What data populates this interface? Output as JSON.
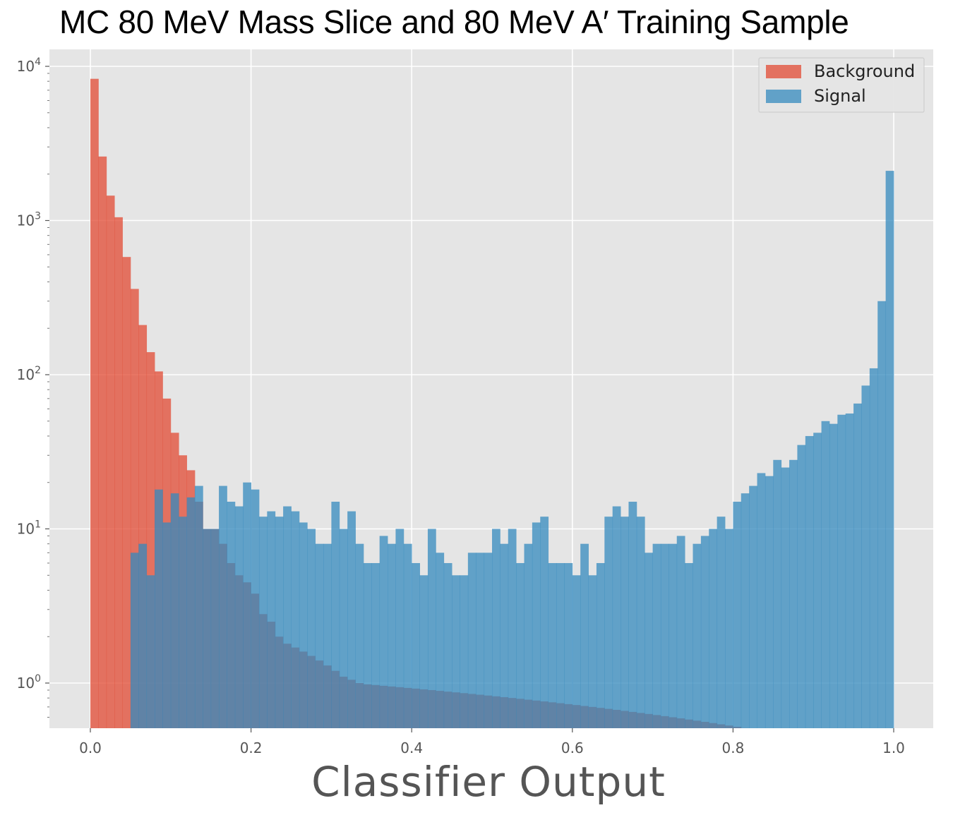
{
  "title": "MC 80 MeV Mass Slice and 80 MeV A′ Training Sample",
  "colors": {
    "background_series": "#E24A33",
    "signal_series": "#348ABD",
    "plot_bg": "#E5E5E5",
    "grid": "#FFFFFF",
    "tick_text": "#555555"
  },
  "chart_data": {
    "type": "bar",
    "xlabel": "Classifier Output",
    "ylabel": "",
    "xlim": [
      -0.05,
      1.05
    ],
    "ylim": [
      0.5,
      12000
    ],
    "yscale": "log",
    "grid": true,
    "legend_position": "top-right",
    "xticks": [
      0.0,
      0.2,
      0.4,
      0.6,
      0.8,
      1.0
    ],
    "xtick_labels": [
      "0.0",
      "0.2",
      "0.4",
      "0.6",
      "0.8",
      "1.0"
    ],
    "yticks": [
      1,
      10,
      100,
      1000,
      10000
    ],
    "ytick_labels": [
      {
        "base": "10",
        "exp": "0"
      },
      {
        "base": "10",
        "exp": "1"
      },
      {
        "base": "10",
        "exp": "2"
      },
      {
        "base": "10",
        "exp": "3"
      },
      {
        "base": "10",
        "exp": "4"
      }
    ],
    "bin_width": 0.01,
    "bin_start": 0.0,
    "series": [
      {
        "name": "Background",
        "values": [
          8300,
          2600,
          1450,
          1050,
          580,
          360,
          210,
          140,
          105,
          70,
          42,
          30,
          24,
          15,
          10,
          10,
          8,
          6,
          5,
          4.5,
          3.8,
          2.8,
          2.5,
          2.0,
          1.8,
          1.7,
          1.6,
          1.5,
          1.4,
          1.3,
          1.2,
          1.1,
          1.05,
          1.0,
          0.98,
          0.97,
          0.96,
          0.95,
          0.94,
          0.93,
          0.92,
          0.91,
          0.9,
          0.89,
          0.88,
          0.87,
          0.86,
          0.85,
          0.84,
          0.83,
          0.82,
          0.81,
          0.8,
          0.79,
          0.78,
          0.77,
          0.76,
          0.75,
          0.74,
          0.73,
          0.72,
          0.71,
          0.7,
          0.69,
          0.68,
          0.67,
          0.66,
          0.65,
          0.64,
          0.63,
          0.62,
          0.61,
          0.6,
          0.59,
          0.58,
          0.57,
          0.56,
          0.55,
          0.54,
          0.53,
          0.52,
          0.51,
          0.505,
          0.503,
          0.502,
          0.501,
          0.5,
          0.5,
          0.5,
          0.5,
          0.5,
          0.5,
          0.5,
          0.5,
          0.5,
          0.5,
          0.5,
          0.5,
          0.5,
          0.5
        ]
      },
      {
        "name": "Signal",
        "values": [
          0.5,
          0.5,
          0.5,
          0.5,
          0.5,
          7,
          8,
          5,
          18,
          11,
          17,
          12,
          16,
          19,
          10,
          10,
          19,
          15,
          14,
          20,
          18,
          12,
          13,
          12,
          14,
          13,
          11,
          10,
          8,
          8,
          15,
          10,
          13,
          8,
          6,
          6,
          9,
          8,
          10,
          8,
          6,
          5,
          10,
          7,
          6,
          5,
          5,
          7,
          7,
          7,
          10,
          8,
          10,
          6,
          8,
          11,
          12,
          6,
          6,
          6,
          5,
          8,
          5,
          6,
          12,
          14,
          12,
          15,
          12,
          7,
          8,
          8,
          8,
          9,
          6,
          8,
          9,
          10,
          12,
          10,
          15,
          17,
          19,
          23,
          22,
          28,
          25,
          28,
          35,
          40,
          42,
          50,
          48,
          55,
          56,
          65,
          85,
          110,
          300,
          2100
        ]
      }
    ]
  }
}
